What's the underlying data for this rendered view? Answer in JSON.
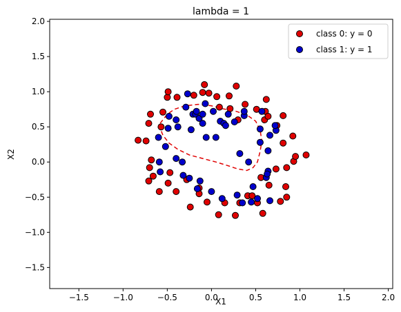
{
  "chart_data": {
    "type": "scatter",
    "title": "lambda = 1",
    "xlabel": "X1",
    "ylabel": "X2",
    "xlim": [
      -1.83,
      2.05
    ],
    "ylim": [
      -1.8,
      2.03
    ],
    "xticks": [
      -1.5,
      -1.0,
      -0.5,
      0.0,
      0.5,
      1.0,
      1.5,
      2.0
    ],
    "xtick_labels": [
      "−1.5",
      "−1.0",
      "−0.5",
      "0.0",
      "0.5",
      "1.0",
      "1.5",
      "2.0"
    ],
    "yticks": [
      -1.5,
      -1.0,
      -0.5,
      0.0,
      0.5,
      1.0,
      1.5,
      2.0
    ],
    "ytick_labels": [
      "−1.5",
      "−1.0",
      "−0.5",
      "0.0",
      "0.5",
      "1.0",
      "1.5",
      "2.0"
    ],
    "grid": false,
    "legend_position": "top-right",
    "series": [
      {
        "name": "class 0: y = 0",
        "color": "#e00000",
        "points": [
          [
            -0.83,
            0.31
          ],
          [
            -0.74,
            0.3
          ],
          [
            -0.71,
            0.55
          ],
          [
            -0.69,
            0.68
          ],
          [
            -0.68,
            0.03
          ],
          [
            -0.7,
            -0.08
          ],
          [
            -0.71,
            -0.27
          ],
          [
            -0.66,
            -0.2
          ],
          [
            -0.59,
            -0.42
          ],
          [
            -0.57,
            0.5
          ],
          [
            -0.55,
            0.71
          ],
          [
            -0.5,
            0.92
          ],
          [
            -0.49,
            1.0
          ],
          [
            -0.49,
            -0.3
          ],
          [
            -0.47,
            -0.15
          ],
          [
            -0.39,
            0.92
          ],
          [
            -0.4,
            -0.42
          ],
          [
            -0.28,
            -0.25
          ],
          [
            -0.24,
            -0.64
          ],
          [
            -0.2,
            0.95
          ],
          [
            -0.14,
            -0.37
          ],
          [
            -0.14,
            -0.45
          ],
          [
            -0.1,
            0.99
          ],
          [
            -0.08,
            1.1
          ],
          [
            -0.05,
            -0.57
          ],
          [
            -0.03,
            0.98
          ],
          [
            0.06,
            0.93
          ],
          [
            0.08,
            -0.75
          ],
          [
            0.09,
            0.78
          ],
          [
            0.15,
            -0.58
          ],
          [
            0.2,
            0.94
          ],
          [
            0.21,
            0.76
          ],
          [
            0.27,
            -0.76
          ],
          [
            0.28,
            1.08
          ],
          [
            0.3,
            0.6
          ],
          [
            0.32,
            -0.58
          ],
          [
            0.38,
            0.82
          ],
          [
            0.41,
            -0.48
          ],
          [
            0.46,
            -0.48
          ],
          [
            0.52,
            -0.58
          ],
          [
            0.51,
            0.75
          ],
          [
            0.56,
            -0.22
          ],
          [
            0.58,
            -0.73
          ],
          [
            0.61,
            0.72
          ],
          [
            0.6,
            0.6
          ],
          [
            0.62,
            0.89
          ],
          [
            0.64,
            0.65
          ],
          [
            0.65,
            -0.33
          ],
          [
            0.73,
            -0.1
          ],
          [
            0.74,
            0.52
          ],
          [
            0.78,
            -0.56
          ],
          [
            0.81,
            0.66
          ],
          [
            0.81,
            0.27
          ],
          [
            0.84,
            -0.35
          ],
          [
            0.85,
            -0.5
          ],
          [
            0.85,
            -0.08
          ],
          [
            0.92,
            0.37
          ],
          [
            0.93,
            0.01
          ],
          [
            0.95,
            0.08
          ],
          [
            1.07,
            0.1
          ]
        ]
      },
      {
        "name": "class 1: y = 1",
        "color": "#0000cc",
        "points": [
          [
            -0.6,
            0.35
          ],
          [
            -0.59,
            0.0
          ],
          [
            -0.58,
            -0.14
          ],
          [
            -0.52,
            0.22
          ],
          [
            -0.49,
            0.48
          ],
          [
            -0.48,
            0.65
          ],
          [
            -0.4,
            0.05
          ],
          [
            -0.4,
            0.6
          ],
          [
            -0.38,
            0.5
          ],
          [
            -0.33,
            0.0
          ],
          [
            -0.32,
            -0.19
          ],
          [
            -0.29,
            0.78
          ],
          [
            -0.27,
            0.97
          ],
          [
            -0.23,
            0.46
          ],
          [
            -0.21,
            0.68
          ],
          [
            -0.18,
            0.68
          ],
          [
            -0.17,
            0.72
          ],
          [
            -0.16,
            -0.38
          ],
          [
            -0.14,
            0.62
          ],
          [
            -0.13,
            -0.27
          ],
          [
            -0.1,
            0.55
          ],
          [
            -0.1,
            0.68
          ],
          [
            -0.07,
            0.83
          ],
          [
            -0.06,
            0.35
          ],
          [
            0.0,
            -0.42
          ],
          [
            0.02,
            0.72
          ],
          [
            0.05,
            0.35
          ],
          [
            0.1,
            0.58
          ],
          [
            0.12,
            -0.52
          ],
          [
            0.14,
            0.55
          ],
          [
            0.16,
            0.52
          ],
          [
            0.19,
            0.68
          ],
          [
            0.26,
            0.57
          ],
          [
            0.29,
            -0.47
          ],
          [
            0.32,
            0.12
          ],
          [
            0.35,
            -0.58
          ],
          [
            0.42,
            0.0
          ],
          [
            0.45,
            -0.57
          ],
          [
            0.47,
            -0.35
          ],
          [
            0.52,
            -0.52
          ],
          [
            0.55,
            0.28
          ],
          [
            0.55,
            0.47
          ],
          [
            0.57,
            0.72
          ],
          [
            0.62,
            -0.22
          ],
          [
            0.64,
            -0.13
          ],
          [
            0.64,
            0.16
          ],
          [
            0.66,
            0.38
          ],
          [
            0.66,
            -0.55
          ],
          [
            0.73,
            0.45
          ],
          [
            0.72,
            0.52
          ],
          [
            0.37,
            0.66
          ],
          [
            0.37,
            0.72
          ],
          [
            0.63,
            -0.17
          ],
          [
            -0.25,
            -0.23
          ]
        ]
      }
    ],
    "decision_boundary": {
      "color": "#e00000",
      "style": "dashed",
      "points": [
        [
          -0.58,
          0.55
        ],
        [
          -0.55,
          0.6
        ],
        [
          -0.5,
          0.68
        ],
        [
          -0.42,
          0.75
        ],
        [
          -0.3,
          0.8
        ],
        [
          -0.15,
          0.82
        ],
        [
          0.0,
          0.8
        ],
        [
          0.12,
          0.76
        ],
        [
          0.28,
          0.72
        ],
        [
          0.4,
          0.67
        ],
        [
          0.5,
          0.58
        ],
        [
          0.55,
          0.45
        ],
        [
          0.57,
          0.3
        ],
        [
          0.55,
          0.15
        ],
        [
          0.52,
          0.0
        ],
        [
          0.47,
          -0.08
        ],
        [
          0.4,
          -0.12
        ],
        [
          0.3,
          -0.1
        ],
        [
          0.18,
          -0.05
        ],
        [
          0.05,
          0.0
        ],
        [
          -0.1,
          0.05
        ],
        [
          -0.25,
          0.1
        ],
        [
          -0.38,
          0.18
        ],
        [
          -0.48,
          0.27
        ],
        [
          -0.55,
          0.38
        ],
        [
          -0.58,
          0.48
        ],
        [
          -0.58,
          0.55
        ]
      ]
    }
  }
}
